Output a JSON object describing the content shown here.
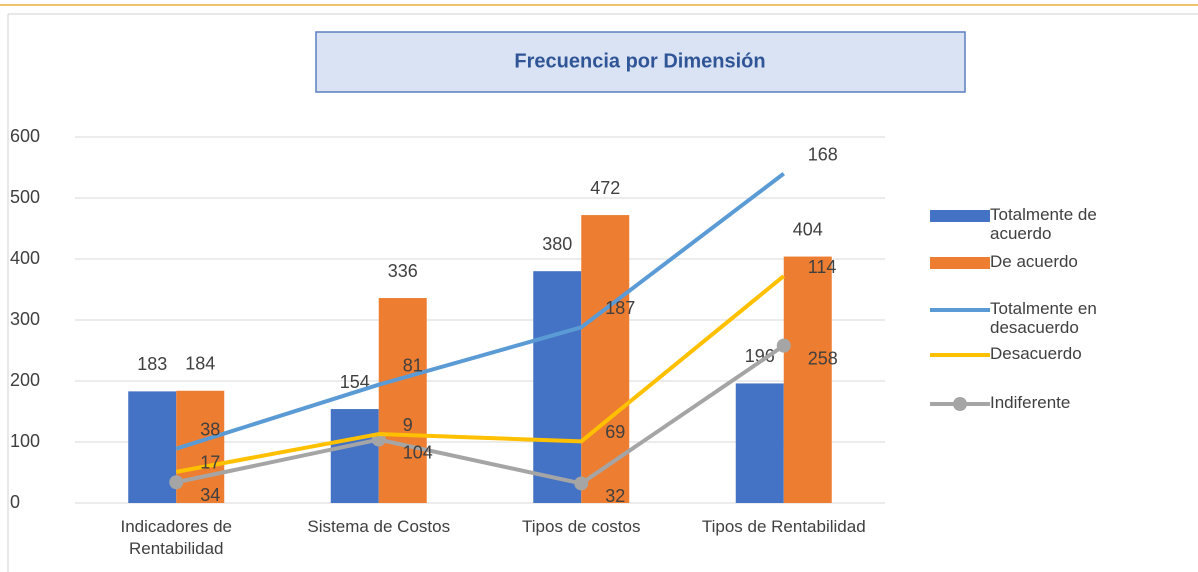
{
  "chart_data": {
    "type": "bar",
    "title": "Frecuencia por Dimensión",
    "categories": [
      "Indicadores de Rentabilidad",
      "Sistema de Costos",
      "Tipos de costos",
      "Tipos de Rentabilidad"
    ],
    "series": [
      {
        "name": "Totalmente de acuerdo",
        "type": "bar",
        "color": "#4472c4",
        "values": [
          183,
          154,
          380,
          196
        ]
      },
      {
        "name": "De acuerdo",
        "type": "bar",
        "color": "#ed7d31",
        "values": [
          184,
          336,
          472,
          404
        ]
      },
      {
        "name": "Totalmente en desacuerdo",
        "type": "stacked_line",
        "color": "#5b9bd5",
        "values": [
          38,
          81,
          187,
          168
        ]
      },
      {
        "name": "Desacuerdo",
        "type": "stacked_line",
        "color": "#ffc000",
        "values": [
          17,
          9,
          69,
          114
        ]
      },
      {
        "name": "Indiferente",
        "type": "stacked_line",
        "color": "#a5a5a5",
        "marker": true,
        "values": [
          34,
          104,
          32,
          258
        ]
      }
    ],
    "ylim": [
      0,
      600
    ],
    "yticks": [
      0,
      100,
      200,
      300,
      400,
      500,
      600
    ],
    "grid": true,
    "legend": "right"
  }
}
